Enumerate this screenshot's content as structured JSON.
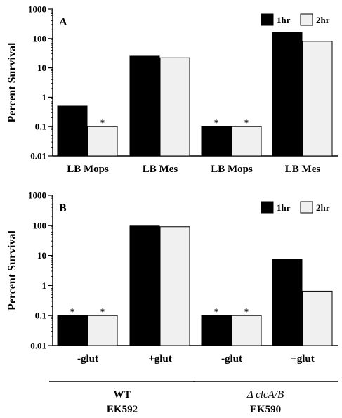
{
  "colors": {
    "dark": "#000000",
    "light": "#f0f0f0"
  },
  "chart_data": [
    {
      "type": "bar",
      "panel": "A",
      "yscale": "log",
      "ylabel": "Percent Survival",
      "ylim": [
        0.01,
        1000
      ],
      "yticks": [
        "0.01",
        "0.1",
        "1",
        "10",
        "100",
        "1000"
      ],
      "categories": [
        "LB Mops",
        "LB Mes",
        "LB Mops",
        "LB Mes"
      ],
      "series": [
        {
          "name": "1hr",
          "color": "#000000",
          "values": [
            0.5,
            25,
            0.1,
            160
          ]
        },
        {
          "name": "2hr",
          "color": "#f0f0f0",
          "values": [
            0.1,
            22,
            0.1,
            80
          ]
        }
      ],
      "annotations": [
        {
          "category": 0,
          "series": 1,
          "text": "*"
        },
        {
          "category": 2,
          "series": 0,
          "text": "*"
        },
        {
          "category": 2,
          "series": 1,
          "text": "*"
        }
      ],
      "legend": "top-right",
      "grid": false
    },
    {
      "type": "bar",
      "panel": "B",
      "yscale": "log",
      "ylabel": "Percent Survival",
      "ylim": [
        0.01,
        1000
      ],
      "yticks": [
        "0.01",
        "0.1",
        "1",
        "10",
        "100",
        "1000"
      ],
      "categories": [
        "-glut",
        "+glut",
        "-glut",
        "+glut"
      ],
      "series": [
        {
          "name": "1hr",
          "color": "#000000",
          "values": [
            0.1,
            100,
            0.1,
            7.5
          ]
        },
        {
          "name": "2hr",
          "color": "#f0f0f0",
          "values": [
            0.1,
            90,
            0.1,
            0.65
          ]
        }
      ],
      "annotations": [
        {
          "category": 0,
          "series": 0,
          "text": "*"
        },
        {
          "category": 0,
          "series": 1,
          "text": "*"
        },
        {
          "category": 2,
          "series": 0,
          "text": "*"
        },
        {
          "category": 2,
          "series": 1,
          "text": "*"
        }
      ],
      "groups": [
        {
          "categories": [
            0,
            1
          ],
          "line1": "WT",
          "line2": "EK592",
          "italic": false
        },
        {
          "categories": [
            2,
            3
          ],
          "line1": "Δ clcA/B",
          "line2": "EK590",
          "italic": true
        }
      ],
      "legend": "top-right",
      "grid": false
    }
  ]
}
